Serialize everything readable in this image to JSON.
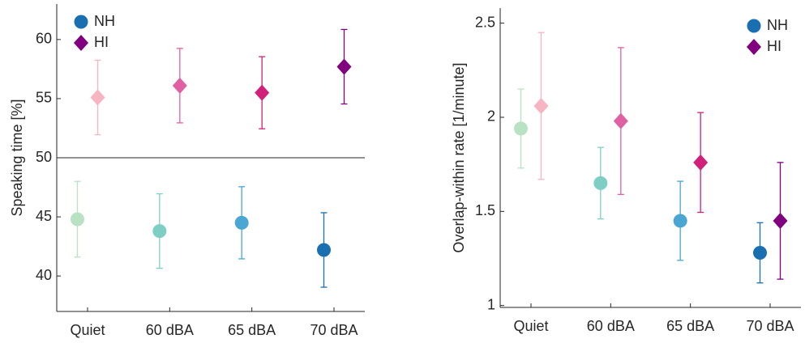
{
  "chart_data": [
    {
      "type": "errorbar",
      "ylabel": "Speaking time [%]",
      "categories": [
        "Quiet",
        "60 dBA",
        "65 dBA",
        "70 dBA"
      ],
      "ylim": [
        37,
        63
      ],
      "yticks": [
        40,
        45,
        50,
        55,
        60
      ],
      "hline": 50,
      "grid": false,
      "legend": "upper left",
      "series": [
        {
          "name": "NH",
          "color": "#1a6fb0",
          "marker": "circle",
          "colors": [
            "#b8e2c2",
            "#7dcfc6",
            "#4aa6d2",
            "#1a6fb0"
          ],
          "values": [
            44.8,
            43.8,
            44.5,
            42.2
          ],
          "errors": [
            3.2,
            3.15,
            3.05,
            3.15
          ]
        },
        {
          "name": "HI",
          "color": "#800080",
          "marker": "diamond",
          "colors": [
            "#f7b4c2",
            "#e060a4",
            "#d0207a",
            "#800080"
          ],
          "values": [
            55.1,
            56.1,
            55.5,
            57.7
          ],
          "errors": [
            3.15,
            3.15,
            3.05,
            3.15
          ]
        }
      ]
    },
    {
      "type": "errorbar",
      "ylabel": "Overlap-within rate [1/minute]",
      "categories": [
        "Quiet",
        "60 dBA",
        "65 dBA",
        "70 dBA"
      ],
      "ylim": [
        0.99,
        2.58
      ],
      "yticks": [
        1,
        1.5,
        2,
        2.5
      ],
      "grid": false,
      "legend": "upper right",
      "series": [
        {
          "name": "NH",
          "color": "#1a6fb0",
          "marker": "circle",
          "colors": [
            "#b8e2c2",
            "#7dcfc6",
            "#4aa6d2",
            "#1a6fb0"
          ],
          "values": [
            1.94,
            1.65,
            1.45,
            1.28
          ],
          "errors": [
            0.21,
            0.19,
            0.21,
            0.16
          ]
        },
        {
          "name": "HI",
          "color": "#800080",
          "marker": "diamond",
          "colors": [
            "#f7b4c2",
            "#e060a4",
            "#d0207a",
            "#800080"
          ],
          "values": [
            2.06,
            1.98,
            1.76,
            1.45
          ],
          "errors": [
            0.39,
            0.39,
            0.265,
            0.31
          ]
        }
      ]
    }
  ]
}
